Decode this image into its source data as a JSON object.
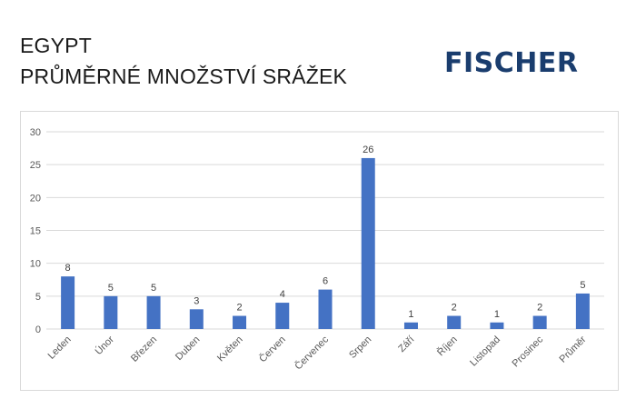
{
  "header": {
    "title_line1": "EGYPT",
    "title_line2": "PRŮMĚRNÉ MNOŽSTVÍ SRÁŽEK"
  },
  "logo": {
    "text": "FISCHER",
    "color": "#1a3d6e"
  },
  "chart_data": {
    "type": "bar",
    "categories": [
      "Leden",
      "Únor",
      "Březen",
      "Duben",
      "Květen",
      "Červen",
      "Červenec",
      "Srpen",
      "Září",
      "Říjen",
      "Listopad",
      "Prosinec",
      "Průměr"
    ],
    "values": [
      8,
      5,
      5,
      3,
      2,
      4,
      6,
      26,
      1,
      2,
      1,
      2,
      5.4
    ],
    "data_labels": [
      "8",
      "5",
      "5",
      "3",
      "2",
      "4",
      "6",
      "26",
      "1",
      "2",
      "1",
      "2",
      "5"
    ],
    "ylim": [
      0,
      30
    ],
    "yticks": [
      0,
      5,
      10,
      15,
      20,
      25,
      30
    ],
    "xlabel": "",
    "ylabel": "",
    "grid": true,
    "bar_color": "#4472c4"
  }
}
